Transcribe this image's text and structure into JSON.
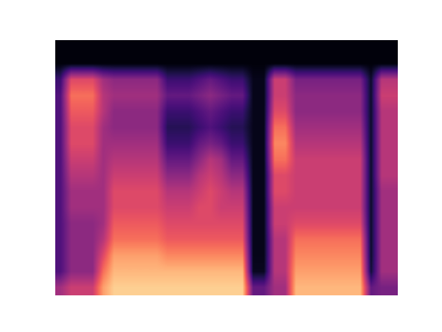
{
  "chart_data": {
    "type": "heatmap",
    "color": "magma",
    "tick_labels": false,
    "value_range": [
      0,
      1
    ],
    "cells": [
      [
        0.45,
        0.55,
        0.55,
        0.55,
        0.8,
        0.9,
        0.9,
        0.9,
        0.9,
        0.9,
        0.9,
        0.9,
        0.9,
        0.9,
        0.9,
        0.9,
        0.9,
        0.9,
        0.3,
        0.3,
        0.45,
        0.45,
        0.85,
        0.85,
        0.85,
        0.85,
        0.85,
        0.85,
        0.85,
        0.3,
        0.35,
        0.35
      ],
      [
        0.25,
        0.4,
        0.4,
        0.4,
        0.7,
        0.85,
        0.85,
        0.85,
        0.85,
        0.85,
        0.85,
        0.85,
        0.85,
        0.85,
        0.85,
        0.85,
        0.85,
        0.85,
        0.06,
        0.06,
        0.5,
        0.5,
        0.8,
        0.8,
        0.8,
        0.8,
        0.8,
        0.8,
        0.8,
        0.1,
        0.45,
        0.45
      ],
      [
        0.25,
        0.4,
        0.4,
        0.4,
        0.6,
        0.8,
        0.8,
        0.8,
        0.8,
        0.8,
        0.75,
        0.75,
        0.75,
        0.75,
        0.75,
        0.75,
        0.75,
        0.75,
        0.05,
        0.05,
        0.5,
        0.5,
        0.75,
        0.75,
        0.75,
        0.75,
        0.75,
        0.75,
        0.75,
        0.08,
        0.45,
        0.45
      ],
      [
        0.25,
        0.4,
        0.4,
        0.4,
        0.5,
        0.7,
        0.7,
        0.7,
        0.7,
        0.7,
        0.65,
        0.65,
        0.65,
        0.65,
        0.65,
        0.65,
        0.65,
        0.65,
        0.05,
        0.05,
        0.5,
        0.5,
        0.7,
        0.7,
        0.7,
        0.7,
        0.7,
        0.7,
        0.7,
        0.08,
        0.45,
        0.45
      ],
      [
        0.25,
        0.4,
        0.4,
        0.4,
        0.45,
        0.65,
        0.65,
        0.65,
        0.65,
        0.65,
        0.6,
        0.6,
        0.6,
        0.6,
        0.6,
        0.6,
        0.6,
        0.6,
        0.05,
        0.05,
        0.55,
        0.55,
        0.6,
        0.6,
        0.6,
        0.6,
        0.6,
        0.6,
        0.6,
        0.08,
        0.45,
        0.45
      ],
      [
        0.25,
        0.45,
        0.45,
        0.45,
        0.45,
        0.6,
        0.6,
        0.6,
        0.6,
        0.6,
        0.55,
        0.55,
        0.55,
        0.6,
        0.6,
        0.55,
        0.55,
        0.55,
        0.05,
        0.05,
        0.55,
        0.55,
        0.55,
        0.55,
        0.55,
        0.55,
        0.55,
        0.55,
        0.55,
        0.08,
        0.45,
        0.45
      ],
      [
        0.25,
        0.45,
        0.45,
        0.45,
        0.45,
        0.6,
        0.6,
        0.6,
        0.6,
        0.6,
        0.5,
        0.5,
        0.5,
        0.55,
        0.6,
        0.55,
        0.5,
        0.5,
        0.05,
        0.05,
        0.6,
        0.6,
        0.55,
        0.55,
        0.55,
        0.55,
        0.55,
        0.55,
        0.55,
        0.08,
        0.45,
        0.45
      ],
      [
        0.25,
        0.5,
        0.5,
        0.5,
        0.45,
        0.55,
        0.55,
        0.55,
        0.55,
        0.55,
        0.4,
        0.4,
        0.4,
        0.5,
        0.55,
        0.5,
        0.4,
        0.4,
        0.05,
        0.05,
        0.6,
        0.6,
        0.55,
        0.55,
        0.55,
        0.55,
        0.55,
        0.55,
        0.55,
        0.08,
        0.5,
        0.5
      ],
      [
        0.25,
        0.55,
        0.55,
        0.55,
        0.45,
        0.5,
        0.5,
        0.5,
        0.5,
        0.5,
        0.3,
        0.3,
        0.3,
        0.4,
        0.5,
        0.45,
        0.3,
        0.3,
        0.05,
        0.05,
        0.7,
        0.7,
        0.55,
        0.55,
        0.55,
        0.55,
        0.55,
        0.55,
        0.55,
        0.08,
        0.5,
        0.5
      ],
      [
        0.25,
        0.6,
        0.6,
        0.6,
        0.45,
        0.45,
        0.45,
        0.45,
        0.45,
        0.45,
        0.2,
        0.2,
        0.2,
        0.3,
        0.35,
        0.3,
        0.2,
        0.2,
        0.05,
        0.05,
        0.75,
        0.75,
        0.5,
        0.5,
        0.5,
        0.5,
        0.5,
        0.5,
        0.5,
        0.08,
        0.5,
        0.5
      ],
      [
        0.25,
        0.6,
        0.6,
        0.6,
        0.45,
        0.4,
        0.4,
        0.4,
        0.4,
        0.4,
        0.15,
        0.15,
        0.15,
        0.2,
        0.25,
        0.2,
        0.15,
        0.15,
        0.05,
        0.05,
        0.7,
        0.7,
        0.45,
        0.45,
        0.45,
        0.45,
        0.45,
        0.45,
        0.45,
        0.08,
        0.5,
        0.5
      ],
      [
        0.25,
        0.65,
        0.65,
        0.65,
        0.5,
        0.4,
        0.4,
        0.4,
        0.4,
        0.4,
        0.2,
        0.2,
        0.2,
        0.25,
        0.3,
        0.25,
        0.2,
        0.2,
        0.05,
        0.05,
        0.6,
        0.6,
        0.4,
        0.4,
        0.4,
        0.4,
        0.4,
        0.4,
        0.4,
        0.08,
        0.5,
        0.5
      ],
      [
        0.25,
        0.7,
        0.7,
        0.7,
        0.5,
        0.45,
        0.45,
        0.45,
        0.45,
        0.45,
        0.3,
        0.3,
        0.3,
        0.35,
        0.4,
        0.35,
        0.3,
        0.3,
        0.05,
        0.05,
        0.55,
        0.55,
        0.4,
        0.4,
        0.4,
        0.4,
        0.4,
        0.4,
        0.4,
        0.08,
        0.55,
        0.55
      ],
      [
        0.2,
        0.6,
        0.6,
        0.6,
        0.45,
        0.4,
        0.4,
        0.4,
        0.4,
        0.4,
        0.2,
        0.2,
        0.2,
        0.25,
        0.3,
        0.25,
        0.2,
        0.2,
        0.05,
        0.05,
        0.55,
        0.55,
        0.35,
        0.35,
        0.35,
        0.35,
        0.35,
        0.35,
        0.35,
        0.08,
        0.5,
        0.5
      ],
      [
        0.02,
        0.02,
        0.02,
        0.02,
        0.02,
        0.02,
        0.02,
        0.02,
        0.02,
        0.02,
        0.02,
        0.02,
        0.02,
        0.02,
        0.02,
        0.02,
        0.02,
        0.02,
        0.02,
        0.02,
        0.02,
        0.02,
        0.02,
        0.02,
        0.02,
        0.02,
        0.02,
        0.02,
        0.02,
        0.02,
        0.02,
        0.02
      ],
      [
        0.02,
        0.02,
        0.02,
        0.02,
        0.02,
        0.02,
        0.02,
        0.02,
        0.02,
        0.02,
        0.02,
        0.02,
        0.02,
        0.02,
        0.02,
        0.02,
        0.02,
        0.02,
        0.02,
        0.02,
        0.02,
        0.02,
        0.02,
        0.02,
        0.02,
        0.02,
        0.02,
        0.02,
        0.02,
        0.02,
        0.02,
        0.02
      ]
    ]
  }
}
